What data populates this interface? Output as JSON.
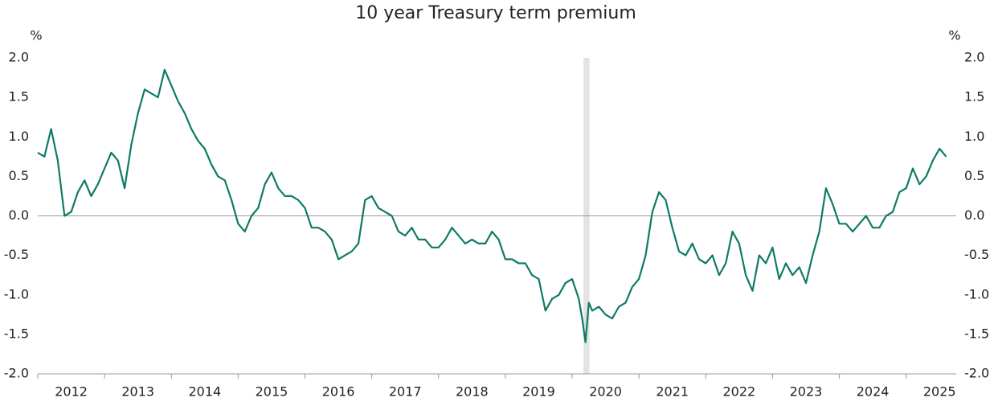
{
  "chart_data": {
    "type": "line",
    "title": "10 year Treasury term premium",
    "ylabel": "%",
    "y2label": "%",
    "x": [
      2012.0,
      2012.1,
      2012.2,
      2012.3,
      2012.4,
      2012.5,
      2012.6,
      2012.7,
      2012.8,
      2012.9,
      2013.0,
      2013.1,
      2013.2,
      2013.3,
      2013.4,
      2013.5,
      2013.6,
      2013.7,
      2013.8,
      2013.9,
      2014.0,
      2014.1,
      2014.2,
      2014.3,
      2014.4,
      2014.5,
      2014.6,
      2014.7,
      2014.8,
      2014.9,
      2015.0,
      2015.1,
      2015.2,
      2015.3,
      2015.4,
      2015.5,
      2015.6,
      2015.7,
      2015.8,
      2015.9,
      2016.0,
      2016.1,
      2016.2,
      2016.3,
      2016.4,
      2016.5,
      2016.6,
      2016.7,
      2016.8,
      2016.9,
      2017.0,
      2017.1,
      2017.2,
      2017.3,
      2017.4,
      2017.5,
      2017.6,
      2017.7,
      2017.8,
      2017.9,
      2018.0,
      2018.1,
      2018.2,
      2018.3,
      2018.4,
      2018.5,
      2018.6,
      2018.7,
      2018.8,
      2018.9,
      2019.0,
      2019.1,
      2019.2,
      2019.3,
      2019.4,
      2019.5,
      2019.6,
      2019.7,
      2019.8,
      2019.9,
      2020.0,
      2020.1,
      2020.15,
      2020.2,
      2020.25,
      2020.3,
      2020.4,
      2020.5,
      2020.6,
      2020.7,
      2020.8,
      2020.9,
      2021.0,
      2021.1,
      2021.2,
      2021.3,
      2021.4,
      2021.5,
      2021.6,
      2021.7,
      2021.8,
      2021.9,
      2022.0,
      2022.1,
      2022.2,
      2022.3,
      2022.4,
      2022.5,
      2022.6,
      2022.7,
      2022.8,
      2022.9,
      2023.0,
      2023.1,
      2023.2,
      2023.3,
      2023.4,
      2023.5,
      2023.6,
      2023.7,
      2023.8,
      2023.9,
      2024.0,
      2024.1,
      2024.2,
      2024.3,
      2024.4,
      2024.5,
      2024.6,
      2024.7,
      2024.8,
      2024.9,
      2025.0,
      2025.1,
      2025.2,
      2025.3,
      2025.4,
      2025.5,
      2025.6
    ],
    "series": [
      {
        "name": "10 year Treasury term premium",
        "color": "#0e7a66",
        "axis": "y",
        "values": [
          0.8,
          0.75,
          1.1,
          0.7,
          0.0,
          0.05,
          0.3,
          0.45,
          0.25,
          0.4,
          0.6,
          0.8,
          0.7,
          0.35,
          0.9,
          1.3,
          1.6,
          1.55,
          1.5,
          1.85,
          1.65,
          1.45,
          1.3,
          1.1,
          0.95,
          0.85,
          0.65,
          0.5,
          0.45,
          0.2,
          -0.1,
          -0.2,
          0.0,
          0.1,
          0.4,
          0.55,
          0.35,
          0.25,
          0.25,
          0.2,
          0.1,
          -0.15,
          -0.15,
          -0.2,
          -0.3,
          -0.55,
          -0.5,
          -0.45,
          -0.35,
          0.2,
          0.25,
          0.1,
          0.05,
          0.0,
          -0.2,
          -0.25,
          -0.15,
          -0.3,
          -0.3,
          -0.4,
          -0.4,
          -0.3,
          -0.15,
          -0.25,
          -0.35,
          -0.3,
          -0.35,
          -0.35,
          -0.2,
          -0.3,
          -0.55,
          -0.55,
          -0.6,
          -0.6,
          -0.75,
          -0.8,
          -1.2,
          -1.05,
          -1.0,
          -0.85,
          -0.8,
          -1.05,
          -1.3,
          -1.6,
          -1.1,
          -1.2,
          -1.15,
          -1.25,
          -1.3,
          -1.15,
          -1.1,
          -0.9,
          -0.8,
          -0.5,
          0.05,
          0.3,
          0.2,
          -0.15,
          -0.45,
          -0.5,
          -0.35,
          -0.55,
          -0.6,
          -0.5,
          -0.75,
          -0.6,
          -0.2,
          -0.35,
          -0.75,
          -0.95,
          -0.5,
          -0.6,
          -0.4,
          -0.8,
          -0.6,
          -0.75,
          -0.65,
          -0.85,
          -0.5,
          -0.2,
          0.35,
          0.15,
          -0.1,
          -0.1,
          -0.2,
          -0.1,
          0.0,
          -0.15,
          -0.15,
          0.0,
          0.05,
          0.3,
          0.35,
          0.6,
          0.4,
          0.5,
          0.7,
          0.85,
          0.75
        ]
      }
    ],
    "xlim": [
      2012,
      2025.75
    ],
    "xticks": [
      {
        "value": 2012,
        "label": "2012"
      },
      {
        "value": 2013,
        "label": "2013"
      },
      {
        "value": 2014,
        "label": "2014"
      },
      {
        "value": 2015,
        "label": "2015"
      },
      {
        "value": 2016,
        "label": "2016"
      },
      {
        "value": 2017,
        "label": "2017"
      },
      {
        "value": 2018,
        "label": "2018"
      },
      {
        "value": 2019,
        "label": "2019"
      },
      {
        "value": 2020,
        "label": "2020"
      },
      {
        "value": 2021,
        "label": "2021"
      },
      {
        "value": 2022,
        "label": "2022"
      },
      {
        "value": 2023,
        "label": "2023"
      },
      {
        "value": 2024,
        "label": "2024"
      },
      {
        "value": 2025,
        "label": "2025"
      }
    ],
    "ylim": [
      -2,
      2
    ],
    "yticks": [
      {
        "value": -2,
        "label": "-2.0"
      },
      {
        "value": -1.5,
        "label": "-1.5"
      },
      {
        "value": -1,
        "label": "-1.0"
      },
      {
        "value": -0.5,
        "label": "-0.5"
      },
      {
        "value": 0,
        "label": "0.0"
      },
      {
        "value": 0.5,
        "label": "0.5"
      },
      {
        "value": 1,
        "label": "1.0"
      },
      {
        "value": 1.5,
        "label": "1.5"
      },
      {
        "value": 2,
        "label": "2.0"
      }
    ],
    "y2lim": [
      -2,
      2
    ],
    "y2ticks": [
      {
        "value": -2,
        "label": "-2.0"
      },
      {
        "value": -1.5,
        "label": "-1.5"
      },
      {
        "value": -1,
        "label": "-1.0"
      },
      {
        "value": -0.5,
        "label": "-0.5"
      },
      {
        "value": 0,
        "label": "0.0"
      },
      {
        "value": 0.5,
        "label": "0.5"
      },
      {
        "value": 1,
        "label": "1.0"
      },
      {
        "value": 1.5,
        "label": "1.5"
      },
      {
        "value": 2,
        "label": "2.0"
      }
    ],
    "shaded_x": [
      2020.17,
      2020.26
    ],
    "shaded_color": "#e3e3e3",
    "zero_line": true,
    "grid": false
  }
}
